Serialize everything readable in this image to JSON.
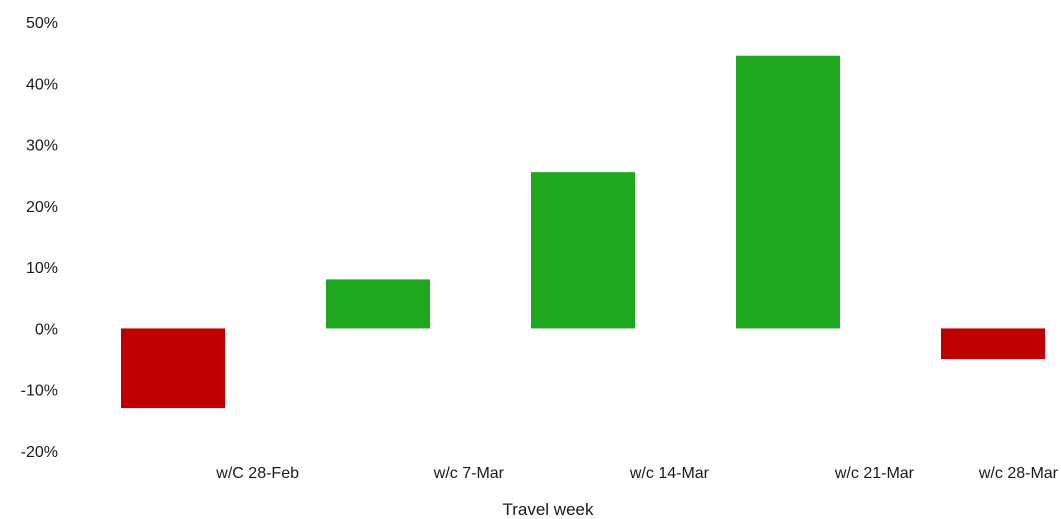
{
  "chart_data": {
    "type": "bar",
    "categories": [
      "w/C 28-Feb",
      "w/c 7-Mar",
      "w/c 14-Mar",
      "w/c 21-Mar",
      "w/c 28-Mar"
    ],
    "values": [
      -13,
      8,
      25.5,
      44.5,
      -5
    ],
    "title": "",
    "xlabel": "Travel week",
    "ylabel": "",
    "ylim": [
      -20,
      50
    ],
    "yticks": [
      50,
      40,
      30,
      20,
      10,
      0,
      -10,
      -20
    ],
    "ytick_labels": [
      "50%",
      "40%",
      "30%",
      "20%",
      "10%",
      "0%",
      "-10%",
      "-20%"
    ],
    "y_unit": "%",
    "grid": false,
    "legend": "none",
    "colors": {
      "positive": "#1fa81f",
      "negative": "#c00000"
    }
  }
}
